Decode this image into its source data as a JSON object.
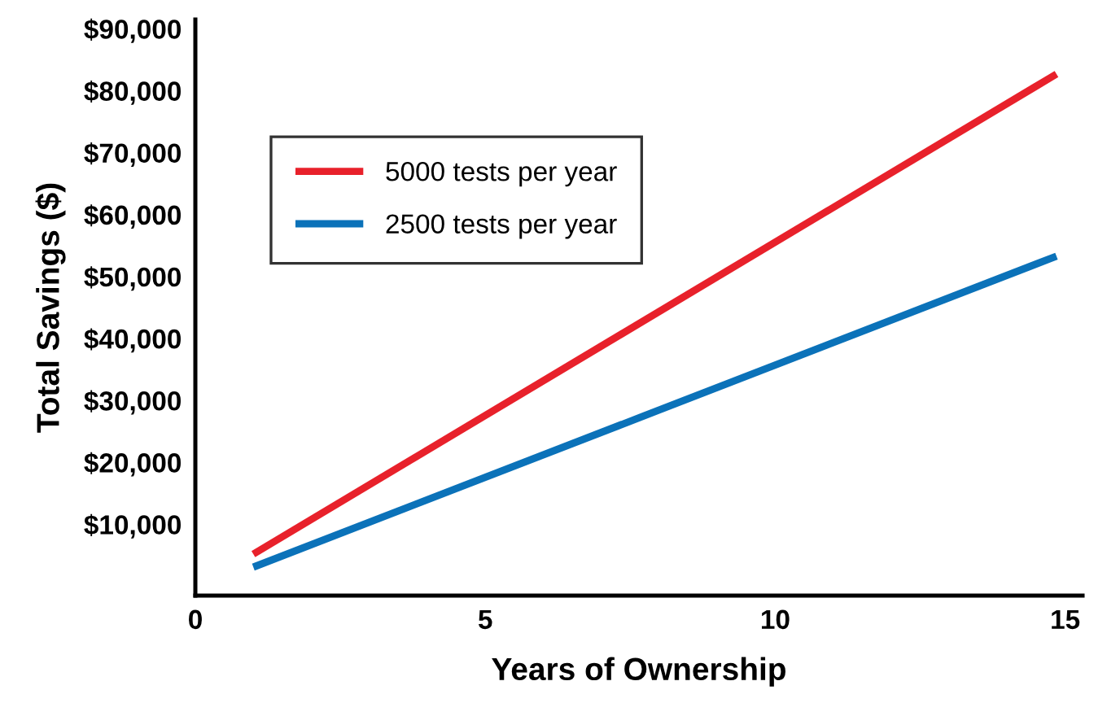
{
  "chart_data": {
    "type": "line",
    "xlabel": "Years of Ownership",
    "ylabel": "Total Savings ($)",
    "series": [
      {
        "name": "5000 tests per year",
        "color": "#e8212b",
        "values": [
          5200,
          82700
        ]
      },
      {
        "name": "2500 tests per year",
        "color": "#0b72b9",
        "values": [
          3100,
          53300
        ]
      }
    ],
    "x": [
      1,
      14.85
    ],
    "xlim": [
      0,
      15.3
    ],
    "xticks": [
      0,
      5,
      10,
      15
    ],
    "ylim": [
      -1500,
      91500
    ],
    "yticks": [
      {
        "value": 10000,
        "label": "$10,000"
      },
      {
        "value": 20000,
        "label": "$20,000"
      },
      {
        "value": 30000,
        "label": "$30,000"
      },
      {
        "value": 40000,
        "label": "$40,000"
      },
      {
        "value": 50000,
        "label": "$50,000"
      },
      {
        "value": 60000,
        "label": "$60,000"
      },
      {
        "value": 70000,
        "label": "$70,000"
      },
      {
        "value": 80000,
        "label": "$80,000"
      },
      {
        "value": 90000,
        "label": "$90,000"
      }
    ],
    "grid": false,
    "legend": "top left",
    "marker": "none",
    "line_style": "solid"
  }
}
